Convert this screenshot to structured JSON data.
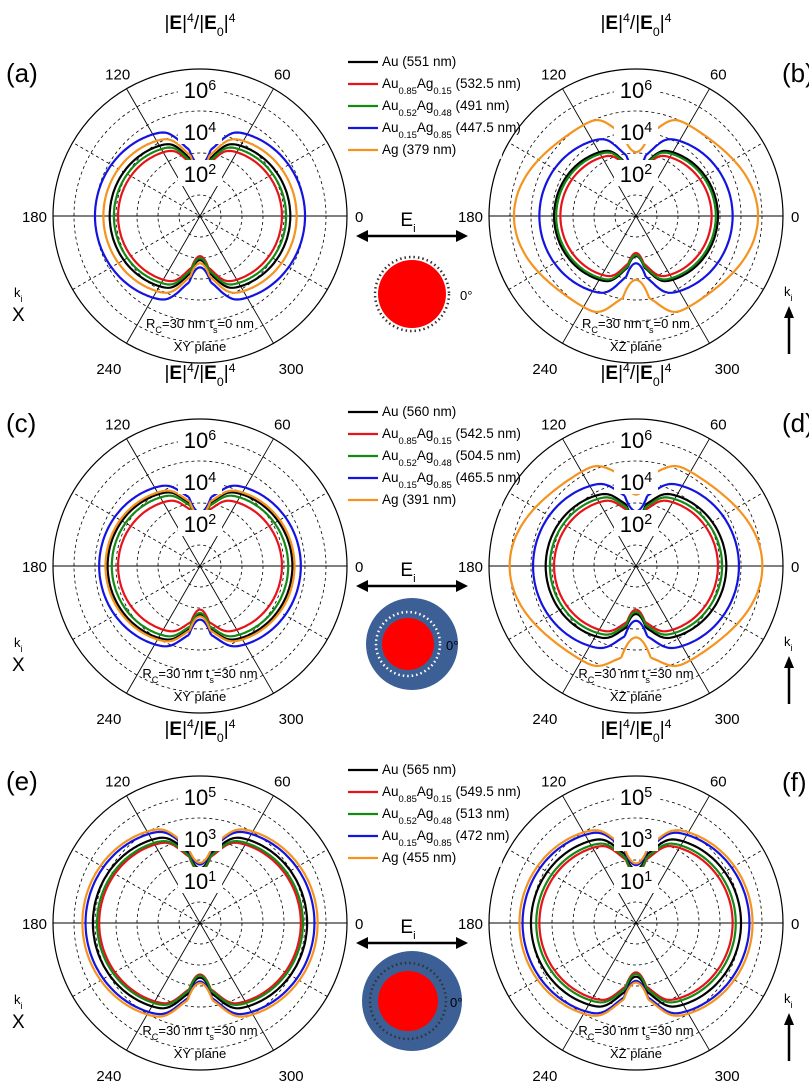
{
  "chart_data": [
    {
      "type": "polar",
      "panel": "(a)",
      "title": [
        "|",
        "E",
        "|",
        "4",
        "/|",
        "E",
        "0",
        "|",
        "4"
      ],
      "angle_ticks": [
        "120",
        "60",
        "180",
        "0",
        "240",
        "300"
      ],
      "radial_labels": [
        [
          "10",
          "6"
        ],
        [
          "10",
          "4"
        ],
        [
          "10",
          "2"
        ]
      ],
      "radial_decades": [
        6,
        4,
        2
      ],
      "rmin_decade": 0,
      "lobe": {
        "dip_scale": 0.24
      },
      "series": [
        {
          "name": [
            "Au",
            "",
            "",
            "",
            " (551 nm)"
          ],
          "color": "#000000",
          "max_decade": 4.3
        },
        {
          "name": [
            "Au",
            "0.85",
            "Ag",
            "0.15",
            " (532.5 nm)"
          ],
          "color": "#e8121a",
          "max_decade": 3.9
        },
        {
          "name": [
            "Au",
            "0.52",
            "Ag",
            "0.48",
            " (491 nm)"
          ],
          "color": "#148a14",
          "max_decade": 4.1
        },
        {
          "name": [
            "Au",
            "0.15",
            "Ag",
            "0.85",
            " (447.5 nm)"
          ],
          "color": "#1414e0",
          "max_decade": 5.0
        },
        {
          "name": [
            "Ag",
            "",
            "",
            "",
            " (379 nm)"
          ],
          "color": "#f5931e",
          "max_decade": 4.6
        }
      ],
      "notes": [
        [
          "R",
          "C",
          "=30 nm t",
          "s",
          "=0 nm"
        ],
        [
          "XY plane"
        ]
      ],
      "incident": {
        "E": [
          "E",
          "i"
        ],
        "k": [
          "k",
          "i"
        ],
        "k_symbol": "X",
        "angle_label": "0°"
      }
    },
    {
      "type": "polar",
      "panel": "(b)",
      "title": [
        "|",
        "E",
        "|",
        "4",
        "/|",
        "E",
        "0",
        "|",
        "4"
      ],
      "angle_ticks": [
        "120",
        "60",
        "180",
        "0",
        "240",
        "300"
      ],
      "radial_labels": [
        [
          "10",
          "6"
        ],
        [
          "10",
          "4"
        ],
        [
          "10",
          "2"
        ]
      ],
      "radial_decades": [
        6,
        4,
        2
      ],
      "rmin_decade": 0,
      "lobe": {
        "dip_scale": 0.24
      },
      "series": [
        {
          "name": "Au",
          "color": "#000000",
          "max_decade": 3.9
        },
        {
          "name": "Au0.85Ag0.15",
          "color": "#e8121a",
          "max_decade": 3.6
        },
        {
          "name": "Au0.52Ag0.48",
          "color": "#148a14",
          "max_decade": 3.8
        },
        {
          "name": "Au0.15Ag0.85",
          "color": "#1414e0",
          "max_decade": 4.6
        },
        {
          "name": "Ag",
          "color": "#f5931e",
          "max_decade": 5.6,
          "wavy": true
        }
      ],
      "notes": [
        [
          "R",
          "C",
          "=30 nm t",
          "s",
          "=0 nm"
        ],
        [
          "XZ plane"
        ]
      ],
      "incident": {
        "k": [
          "k",
          "i"
        ],
        "k_symbol": "arrow"
      }
    },
    {
      "type": "polar",
      "panel": "(c)",
      "title": [
        "|",
        "E",
        "|",
        "4",
        "/|",
        "E",
        "0",
        "|",
        "4"
      ],
      "angle_ticks": [
        "120",
        "60",
        "180",
        "0",
        "240",
        "300"
      ],
      "radial_labels": [
        [
          "10",
          "6"
        ],
        [
          "10",
          "4"
        ],
        [
          "10",
          "2"
        ]
      ],
      "radial_decades": [
        6,
        4,
        2
      ],
      "rmin_decade": 0,
      "lobe": {
        "dip_scale": 0.16
      },
      "series": [
        {
          "name": [
            "Au",
            "",
            "",
            "",
            " (560 nm)"
          ],
          "color": "#000000",
          "max_decade": 4.4
        },
        {
          "name": [
            "Au",
            "0.85",
            "Ag",
            "0.15",
            " (542.5 nm)"
          ],
          "color": "#e8121a",
          "max_decade": 3.9
        },
        {
          "name": [
            "Au",
            "0.52",
            "Ag",
            "0.48",
            " (504.5 nm)"
          ],
          "color": "#148a14",
          "max_decade": 4.2
        },
        {
          "name": [
            "Au",
            "0.15",
            "Ag",
            "0.85",
            " (465.5 nm)"
          ],
          "color": "#1414e0",
          "max_decade": 4.8
        },
        {
          "name": [
            "Ag",
            "",
            "",
            "",
            " (391 nm)"
          ],
          "color": "#f5931e",
          "max_decade": 4.5
        }
      ],
      "notes": [
        [
          "R",
          "C",
          "=30 nm t",
          "s",
          "=30 nm"
        ],
        [
          "XY plane"
        ]
      ],
      "incident": {
        "E": [
          "E",
          "i"
        ],
        "k": [
          "k",
          "i"
        ],
        "k_symbol": "X",
        "angle_label": "0°"
      }
    },
    {
      "type": "polar",
      "panel": "(d)",
      "title": [
        "|",
        "E",
        "|",
        "4",
        "/|",
        "E",
        "0",
        "|",
        "4"
      ],
      "angle_ticks": [
        "120",
        "60",
        "180",
        "0",
        "240",
        "300"
      ],
      "radial_labels": [
        [
          "10",
          "6"
        ],
        [
          "10",
          "4"
        ],
        [
          "10",
          "2"
        ]
      ],
      "radial_decades": [
        6,
        4,
        2
      ],
      "rmin_decade": 0,
      "lobe": {
        "dip_scale": 0.16
      },
      "series": [
        {
          "name": "Au",
          "color": "#000000",
          "max_decade": 4.3
        },
        {
          "name": "Au0.85Ag0.15",
          "color": "#e8121a",
          "max_decade": 3.9
        },
        {
          "name": "Au0.52Ag0.48",
          "color": "#148a14",
          "max_decade": 4.1
        },
        {
          "name": "Au0.15Ag0.85",
          "color": "#1414e0",
          "max_decade": 4.9
        },
        {
          "name": "Ag",
          "color": "#f5931e",
          "max_decade": 5.8,
          "wavy": true
        }
      ],
      "notes": [
        [
          "R",
          "C",
          "=30 nm t",
          "s",
          "=30 nm"
        ],
        [
          "XZ plane"
        ]
      ],
      "incident": {
        "k": [
          "k",
          "i"
        ],
        "k_symbol": "arrow"
      }
    },
    {
      "type": "polar",
      "panel": "(e)",
      "title": [
        "|",
        "E",
        "|",
        "4",
        "/|",
        "E",
        "0",
        "|",
        "4"
      ],
      "angle_ticks": [
        "120",
        "60",
        "180",
        "0",
        "240",
        "300"
      ],
      "radial_labels": [
        [
          "10",
          "5"
        ],
        [
          "10",
          "3"
        ],
        [
          "10",
          "1"
        ]
      ],
      "radial_decades": [
        5,
        3,
        1
      ],
      "rmin_decade": -1,
      "lobe": {
        "dip_scale": 0.2
      },
      "series": [
        {
          "name": [
            "Au",
            "",
            "",
            "",
            " (565 nm)"
          ],
          "color": "#000000",
          "max_decade": 4.1
        },
        {
          "name": [
            "Au",
            "0.85",
            "Ag",
            "0.15",
            " (549.5 nm)"
          ],
          "color": "#e8121a",
          "max_decade": 3.8
        },
        {
          "name": [
            "Au",
            "0.52",
            "Ag",
            "0.48",
            " (513 nm)"
          ],
          "color": "#148a14",
          "max_decade": 3.9
        },
        {
          "name": [
            "Au",
            "0.15",
            "Ag",
            "0.85",
            " (472 nm)"
          ],
          "color": "#1414e0",
          "max_decade": 4.45
        },
        {
          "name": [
            "Ag",
            "",
            "",
            "",
            " (455 nm)"
          ],
          "color": "#f5931e",
          "max_decade": 4.6
        }
      ],
      "notes": [
        [
          "R",
          "C",
          "=30 nm t",
          "s",
          "=30 nm"
        ],
        [
          "XY plane"
        ]
      ],
      "incident": {
        "E": [
          "E",
          "i"
        ],
        "k": [
          "k",
          "i"
        ],
        "k_symbol": "X",
        "angle_label": "0°"
      }
    },
    {
      "type": "polar",
      "panel": "(f)",
      "title": [
        "|",
        "E",
        "|",
        "4",
        "/|",
        "E",
        "0",
        "|",
        "4"
      ],
      "angle_ticks": [
        "120",
        "60",
        "180",
        "0",
        "240",
        "300"
      ],
      "radial_labels": [
        [
          "10",
          "5"
        ],
        [
          "10",
          "3"
        ],
        [
          "10",
          "1"
        ]
      ],
      "radial_decades": [
        5,
        3,
        1
      ],
      "rmin_decade": -1,
      "lobe": {
        "dip_scale": 0.2
      },
      "series": [
        {
          "name": "Au",
          "color": "#000000",
          "max_decade": 4.0
        },
        {
          "name": "Au0.85Ag0.15",
          "color": "#e8121a",
          "max_decade": 3.6
        },
        {
          "name": "Au0.52Ag0.48",
          "color": "#148a14",
          "max_decade": 3.75
        },
        {
          "name": "Au0.15Ag0.85",
          "color": "#1414e0",
          "max_decade": 4.4
        },
        {
          "name": "Ag",
          "color": "#f5931e",
          "max_decade": 4.55
        }
      ],
      "notes": [
        [
          "R",
          "C",
          "=30 nm t",
          "s",
          "=30 nm"
        ],
        [
          "XZ plane"
        ]
      ],
      "incident": {
        "k": [
          "k",
          "i"
        ],
        "k_symbol": "arrow"
      }
    }
  ],
  "colors": {
    "core": "#ff0000",
    "shell": "#3c5f96",
    "dots_dark": "#333333",
    "dots_light": "#ffffff"
  }
}
